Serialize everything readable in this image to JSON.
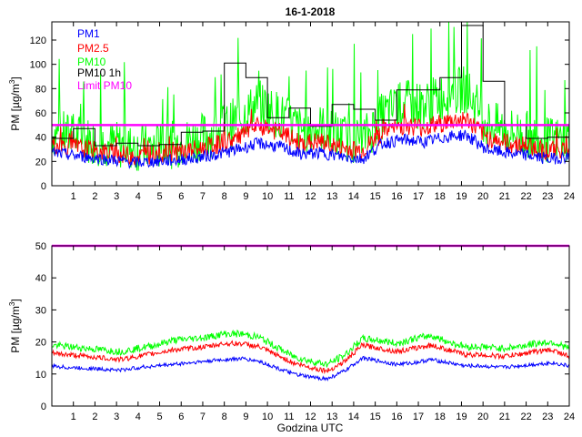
{
  "title": "16-1-2018",
  "chart_data": [
    {
      "type": "line",
      "ylabel_base": "PM [µg/m",
      "ylabel_sup": "3",
      "ylabel_close": "]",
      "xlabel": "",
      "xlim": [
        0,
        24
      ],
      "ylim": [
        0,
        135
      ],
      "x_ticks": [
        1,
        2,
        3,
        4,
        5,
        6,
        7,
        8,
        9,
        10,
        11,
        12,
        13,
        14,
        15,
        16,
        17,
        18,
        19,
        20,
        21,
        22,
        23,
        24
      ],
      "y_ticks": [
        0,
        20,
        40,
        60,
        80,
        100,
        120
      ],
      "legend": [
        {
          "label": "PM1",
          "color": "#0000ff"
        },
        {
          "label": "PM2.5",
          "color": "#ff0000"
        },
        {
          "label": "PM10",
          "color": "#00ff00"
        },
        {
          "label": "PM10 1h",
          "color": "#000000"
        },
        {
          "label": "Limit PM10",
          "color": "#ff00ff"
        }
      ],
      "legend_position": "top-left",
      "limit_pm10": 50,
      "pm10_1h": [
        39,
        47,
        33,
        35,
        33,
        34,
        44,
        45,
        101,
        89,
        56,
        64,
        49,
        67,
        63,
        54,
        79,
        79,
        89,
        132,
        86,
        50,
        39,
        40
      ],
      "series": [
        {
          "name": "PM1",
          "color": "#0000ff",
          "values": [
            27,
            25,
            23,
            21,
            19,
            20,
            21,
            23,
            26,
            30,
            35,
            32,
            26,
            27,
            24,
            22,
            35,
            38,
            36,
            40,
            42,
            30,
            27,
            25,
            22,
            24
          ]
        },
        {
          "name": "PM2.5",
          "color": "#ff0000",
          "values": [
            34,
            32,
            29,
            27,
            24,
            26,
            27,
            30,
            34,
            40,
            49,
            44,
            35,
            36,
            31,
            29,
            44,
            50,
            48,
            52,
            55,
            40,
            35,
            33,
            29,
            31
          ]
        },
        {
          "name": "PM10",
          "color": "#00ff00",
          "values": [
            43,
            41,
            37,
            34,
            31,
            32,
            34,
            39,
            45,
            55,
            68,
            58,
            46,
            48,
            40,
            37,
            58,
            68,
            66,
            75,
            80,
            52,
            45,
            42,
            37,
            39
          ]
        }
      ]
    },
    {
      "type": "line",
      "ylabel_base": "PM [µg/m",
      "ylabel_sup": "3",
      "ylabel_close": "]",
      "xlabel": "Godzina UTC",
      "xlim": [
        0,
        24
      ],
      "ylim": [
        0,
        50
      ],
      "x_ticks": [
        1,
        2,
        3,
        4,
        5,
        6,
        7,
        8,
        9,
        10,
        11,
        12,
        13,
        14,
        15,
        16,
        17,
        18,
        19,
        20,
        21,
        22,
        23,
        24
      ],
      "y_ticks": [
        0,
        10,
        20,
        30,
        40,
        50
      ],
      "limit_pm10": 50,
      "series": [
        {
          "name": "PM1",
          "color": "#0000ff",
          "values": [
            12.5,
            12,
            11.8,
            11.5,
            11.2,
            12,
            12.5,
            13,
            13.5,
            14,
            14.5,
            14.8,
            14,
            12,
            10,
            9,
            8.5,
            11,
            15,
            14,
            13,
            13.5,
            14.5,
            13.5,
            12.5,
            12.5,
            12,
            12.5,
            13,
            13.5,
            12.5
          ]
        },
        {
          "name": "PM2.5",
          "color": "#ff0000",
          "values": [
            16.5,
            16,
            15.5,
            15,
            14.5,
            15.5,
            16.5,
            17.5,
            18,
            18.5,
            19.5,
            19.5,
            18.5,
            16,
            13.5,
            12,
            11,
            14,
            19,
            18,
            17,
            18,
            19,
            17.5,
            16,
            16,
            15.5,
            16,
            17,
            17.5,
            15.5
          ]
        },
        {
          "name": "PM10",
          "color": "#00ff00",
          "values": [
            19,
            18.5,
            18,
            17.5,
            17,
            18,
            19,
            20.5,
            21,
            21.5,
            22.5,
            22.5,
            21.5,
            18.5,
            15.5,
            14,
            13,
            16,
            21,
            20.5,
            19.5,
            21,
            22,
            20,
            18.5,
            18.5,
            18,
            18.5,
            19.5,
            20,
            18
          ]
        }
      ]
    }
  ]
}
